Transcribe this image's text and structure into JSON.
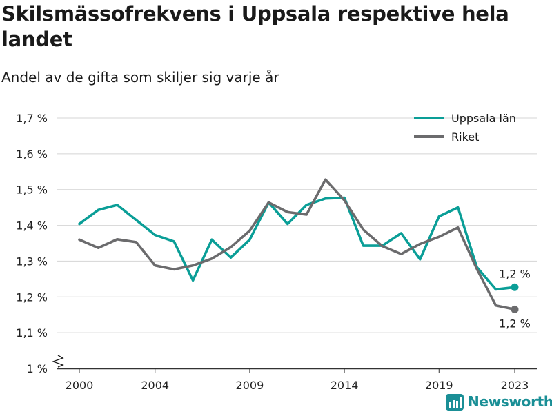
{
  "title": "Skilsmässofrekvens i Uppsala respektive hela landet",
  "subtitle": "Andel av de gifta som skiljer sig varje år",
  "brand": "Newsworthy",
  "colors": {
    "uppsala": "#0a9e97",
    "riket": "#6b6b6d",
    "grid": "#d4d4d4",
    "axis": "#333333"
  },
  "chart_data": {
    "type": "line",
    "x": [
      2000,
      2001,
      2002,
      2003,
      2004,
      2005,
      2006,
      2007,
      2008,
      2009,
      2010,
      2011,
      2012,
      2013,
      2014,
      2015,
      2016,
      2017,
      2018,
      2019,
      2020,
      2021,
      2022,
      2023
    ],
    "x_ticks": [
      2000,
      2004,
      2009,
      2014,
      2019,
      2023
    ],
    "y_ticks": [
      {
        "value": 1.0,
        "label": "1 %"
      },
      {
        "value": 1.1,
        "label": "1,1 %"
      },
      {
        "value": 1.2,
        "label": "1,2 %"
      },
      {
        "value": 1.3,
        "label": "1,3 %"
      },
      {
        "value": 1.4,
        "label": "1,4 %"
      },
      {
        "value": 1.5,
        "label": "1,5 %"
      },
      {
        "value": 1.6,
        "label": "1,6 %"
      },
      {
        "value": 1.7,
        "label": "1,7 %"
      }
    ],
    "ylim": [
      1.0,
      1.7
    ],
    "y_axis_break": true,
    "grid": true,
    "legend_position": "top-right",
    "series": [
      {
        "name": "Uppsala län",
        "color": "#0a9e97",
        "end_label": "1,2 %",
        "values": [
          1.404,
          1.443,
          1.457,
          1.415,
          1.373,
          1.355,
          1.246,
          1.36,
          1.31,
          1.36,
          1.464,
          1.404,
          1.457,
          1.475,
          1.477,
          1.343,
          1.343,
          1.378,
          1.305,
          1.425,
          1.45,
          1.283,
          1.221,
          1.227
        ]
      },
      {
        "name": "Riket",
        "color": "#6b6b6d",
        "end_label": "1,2 %",
        "values": [
          1.36,
          1.337,
          1.361,
          1.353,
          1.288,
          1.277,
          1.288,
          1.307,
          1.339,
          1.385,
          1.464,
          1.437,
          1.43,
          1.528,
          1.47,
          1.388,
          1.342,
          1.32,
          1.348,
          1.368,
          1.394,
          1.278,
          1.176,
          1.165
        ]
      }
    ]
  }
}
